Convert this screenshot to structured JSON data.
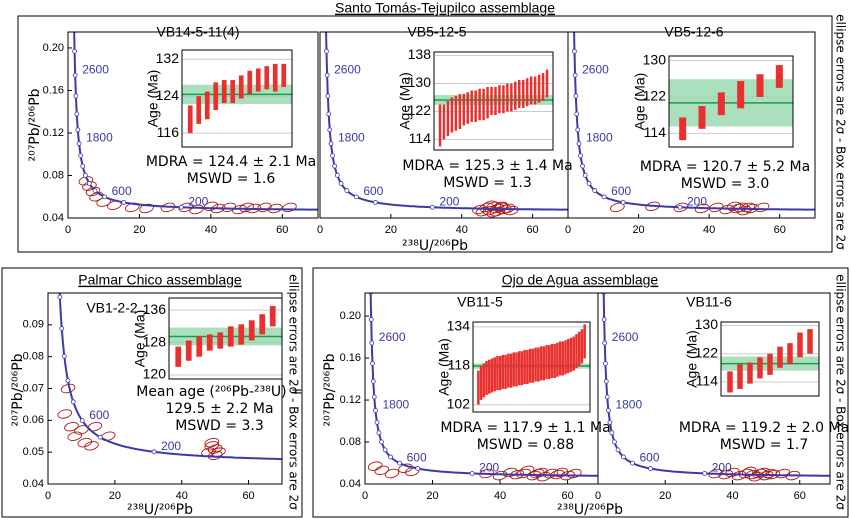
{
  "chart_data": [
    {
      "title": "Santo Tomás-Tejupilco assemblage",
      "side_note": "ellipse errors are 2σ - Box errors are 2σ",
      "x_label": "²³⁸U/²⁰⁶Pb",
      "y_label": "²⁰⁷Pb/²⁰⁶Pb",
      "panels": [
        {
          "type": "concordia",
          "title": "VB14-5-11(4)",
          "xlim": [
            0,
            70
          ],
          "xticks": [
            0,
            20,
            40,
            60
          ],
          "ylim": [
            0.04,
            0.215
          ],
          "yticks": [
            0.04,
            0.08,
            0.12,
            0.16,
            {
              "value": 0.2,
              "label": "0.20"
            }
          ],
          "age_labels": [
            2600,
            1800,
            600,
            200
          ],
          "curve_color": "#3a3aa8",
          "point_color": "#b01818",
          "points": {
            "x": [
              5,
              6,
              7,
              8,
              10,
              13,
              18,
              22,
              28,
              33,
              36,
              40,
              42,
              45,
              48,
              50,
              52,
              55,
              58,
              62
            ],
            "y": [
              0.075,
              0.07,
              0.065,
              0.06,
              0.055,
              0.052,
              0.05,
              0.049,
              0.05,
              0.05,
              0.048,
              0.051,
              0.049,
              0.05,
              0.048,
              0.05,
              0.049,
              0.05,
              0.049,
              0.05
            ]
          },
          "inset": {
            "type": "weighted_mean",
            "y_label": "Age (Ma)",
            "ylim": [
              113,
              134
            ],
            "yticks": [
              116,
              124,
              132
            ],
            "color": "#e8312f",
            "band_color": "#8fd6a8",
            "line_color": "#1f9a4f",
            "values": [
              119,
              121,
              122,
              124,
              125,
              125,
              126,
              127,
              127.5,
              128,
              128,
              128.5
            ],
            "errors": [
              3,
              3,
              3,
              3,
              2.5,
              2.5,
              2.5,
              2.5,
              2.5,
              2.5,
              3,
              2.5
            ],
            "mean": 124.4,
            "mean_error": 2.1
          },
          "result": [
            "MDRA = 124.4 ± 2.1 Ma",
            "MSWD = 1.6"
          ]
        },
        {
          "type": "concordia",
          "title": "VB5-12-5",
          "xlim": [
            0,
            70
          ],
          "xticks": [
            0,
            20,
            40,
            60
          ],
          "ylim": [
            0.04,
            0.215
          ],
          "age_labels": [
            2600,
            1800,
            600,
            200
          ],
          "curve_color": "#3a3aa8",
          "point_color": "#b01818",
          "points": {
            "x": [
              45,
              47,
              48,
              49,
              50,
              50,
              51,
              52,
              53,
              48,
              46,
              54,
              49,
              51
            ],
            "y": [
              0.048,
              0.05,
              0.047,
              0.051,
              0.049,
              0.046,
              0.05,
              0.048,
              0.049,
              0.052,
              0.046,
              0.047,
              0.045,
              0.051
            ]
          },
          "inset": {
            "type": "weighted_mean",
            "y_label": "Age (Ma)",
            "ylim": [
              111,
              139
            ],
            "yticks": [
              114,
              122,
              130,
              138
            ],
            "color": "#e8312f",
            "band_color": "#8fd6a8",
            "line_color": "#1f9a4f",
            "values": [
              118,
              119,
              120,
              121,
              121.5,
              122,
              122.5,
              123,
              123.5,
              123.5,
              124,
              124,
              124.5,
              125,
              125,
              125.5,
              125.5,
              126,
              126,
              126.5,
              127,
              127,
              127.5,
              128,
              128,
              128.5,
              129,
              130
            ],
            "errors": [
              6,
              5,
              5,
              5,
              5,
              5,
              4.5,
              4.5,
              4.5,
              4.5,
              4.5,
              4.5,
              4.5,
              4,
              4,
              4,
              4,
              4,
              4,
              4,
              4,
              4,
              4,
              4,
              4,
              4,
              4,
              4
            ],
            "mean": 125.3,
            "mean_error": 1.4
          },
          "result": [
            "MDRA = 125.3 ± 1.4 Ma",
            "MSWD = 1.3"
          ]
        },
        {
          "type": "concordia",
          "title": "VB5-12-6",
          "xlim": [
            0,
            70
          ],
          "xticks": [
            0,
            20,
            40,
            60
          ],
          "ylim": [
            0.04,
            0.215
          ],
          "age_labels": [
            2600,
            1800,
            600,
            200
          ],
          "curve_color": "#3a3aa8",
          "point_color": "#b01818",
          "points": {
            "x": [
              14,
              24,
              32,
              38,
              42,
              45,
              47,
              48,
              49,
              50,
              51,
              52,
              55
            ],
            "y": [
              0.05,
              0.051,
              0.05,
              0.049,
              0.05,
              0.048,
              0.051,
              0.049,
              0.05,
              0.047,
              0.05,
              0.049,
              0.05
            ]
          },
          "inset": {
            "type": "weighted_mean",
            "y_label": "Age (Ma)",
            "ylim": [
              111,
              131
            ],
            "yticks": [
              114,
              122,
              130
            ],
            "color": "#e8312f",
            "band_color": "#8fd6a8",
            "line_color": "#1f9a4f",
            "values": [
              115,
              117.5,
              120.5,
              122.5,
              124.5,
              126.5
            ],
            "errors": [
              2.5,
              2.5,
              2.5,
              3,
              2.5,
              2.5
            ],
            "mean": 120.7,
            "mean_error": 5.2
          },
          "result": [
            "MDRA = 120.7 ± 5.2 Ma",
            "MSWD = 3.0"
          ]
        }
      ]
    },
    {
      "title": "Palmar Chico assemblage",
      "side_note": "ellipse errors are 2σ - Box errors are 2σ",
      "x_label": "²³⁸U/²⁰⁶Pb",
      "y_label": "²⁰⁷Pb/²⁰⁶Pb",
      "panels": [
        {
          "type": "concordia",
          "title": "VB1-2-2",
          "xlim": [
            0,
            70
          ],
          "xticks": [
            0,
            20,
            40,
            60
          ],
          "ylim": [
            0.04,
            0.1
          ],
          "yticks": [
            0.04,
            0.05,
            0.06,
            0.07,
            0.08,
            0.09
          ],
          "age_labels": [
            600,
            200
          ],
          "curve_color": "#3a3aa8",
          "point_color": "#b01818",
          "points": {
            "x": [
              5,
              6,
              7,
              8,
              10,
              11,
              13,
              14,
              18,
              48,
              49,
              50,
              50,
              51,
              49
            ],
            "y": [
              0.062,
              0.07,
              0.058,
              0.055,
              0.057,
              0.053,
              0.052,
              0.058,
              0.055,
              0.05,
              0.052,
              0.049,
              0.051,
              0.05,
              0.053
            ]
          },
          "inset": {
            "type": "weighted_mean",
            "y_label": "Age (Ma)",
            "ylim": [
              119,
              139
            ],
            "yticks": [
              120,
              128,
              136
            ],
            "color": "#e8312f",
            "band_color": "#8fd6a8",
            "line_color": "#1f9a4f",
            "values": [
              124.5,
              126,
              127,
              128,
              128.5,
              129.5,
              130,
              131,
              132.5,
              134.5
            ],
            "errors": [
              2.5,
              2.5,
              2.5,
              2,
              2,
              2.5,
              2.5,
              2.5,
              2.5,
              2.5
            ],
            "mean": 129.5,
            "mean_error": 2.2
          },
          "result": [
            "Mean age (²⁰⁶Pb-²³⁸U) =",
            "129.5 ± 2.2 Ma",
            "MSWD = 3.3"
          ]
        }
      ]
    },
    {
      "title": "Ojo de Agua assemblage",
      "side_note": "ellipse errors are 2σ - Box errors are 2σ",
      "x_label": "²³⁸U/²⁰⁶Pb",
      "y_label": "²⁰⁷Pb/²⁰⁶Pb",
      "panels": [
        {
          "type": "concordia",
          "title": "VB11-5",
          "xlim": [
            0,
            69
          ],
          "xticks": [
            0,
            20,
            40,
            60
          ],
          "ylim": [
            0.04,
            0.222
          ],
          "yticks": [
            0.04,
            0.08,
            0.12,
            0.16,
            {
              "value": 0.2,
              "label": "0.20"
            }
          ],
          "age_labels": [
            2600,
            1800,
            600,
            200
          ],
          "curve_color": "#3a3aa8",
          "point_color": "#b01818",
          "points": {
            "x": [
              3,
              5,
              8,
              12,
              14,
              36,
              40,
              43,
              45,
              47,
              48,
              50,
              51,
              52,
              53,
              55,
              57,
              58,
              60,
              62
            ],
            "y": [
              0.057,
              0.053,
              0.05,
              0.055,
              0.052,
              0.05,
              0.048,
              0.051,
              0.049,
              0.05,
              0.053,
              0.048,
              0.05,
              0.051,
              0.047,
              0.05,
              0.049,
              0.051,
              0.048,
              0.05
            ]
          },
          "inset": {
            "type": "weighted_mean",
            "y_label": "Age (Ma)",
            "ylim": [
              99,
              136
            ],
            "yticks": [
              102,
              118,
              134
            ],
            "color": "#e8312f",
            "band_color": "#8fd6a8",
            "line_color": "#1f9a4f",
            "values": [
              109,
              111,
              112,
              113,
              113.5,
              114,
              114.5,
              115,
              115,
              115.5,
              115.5,
              116,
              116,
              116.5,
              116.5,
              117,
              117,
              117.5,
              117.5,
              118,
              118,
              118.5,
              118.5,
              119,
              119,
              119.5,
              119.5,
              120,
              120,
              120.5,
              121,
              121,
              121.5,
              122,
              122.5,
              123,
              124,
              125,
              126,
              128
            ],
            "errors": [
              7,
              7,
              7,
              7,
              7,
              7,
              7,
              7,
              7,
              7,
              7,
              7,
              7,
              7,
              7,
              7,
              7,
              7,
              7,
              7,
              7,
              7,
              7,
              7,
              7,
              7,
              7,
              7,
              7,
              7,
              7,
              7,
              7,
              7,
              7,
              7,
              7,
              7,
              7,
              7
            ],
            "mean": 117.9,
            "mean_error": 1.1
          },
          "result": [
            "MDRA = 117.9 ± 1.1 Ma",
            "MSWD = 0.88"
          ]
        },
        {
          "type": "concordia",
          "title": "VB11-6",
          "xlim": [
            0,
            69
          ],
          "xticks": [
            0,
            20,
            40,
            60
          ],
          "ylim": [
            0.04,
            0.222
          ],
          "age_labels": [
            2600,
            1800,
            600,
            200
          ],
          "curve_color": "#3a3aa8",
          "point_color": "#b01818",
          "points": {
            "x": [
              35,
              38,
              40,
              42,
              44,
              45,
              46,
              47,
              48,
              49,
              50,
              51,
              52,
              55,
              58
            ],
            "y": [
              0.05,
              0.049,
              0.051,
              0.048,
              0.05,
              0.052,
              0.049,
              0.047,
              0.05,
              0.051,
              0.048,
              0.05,
              0.049,
              0.05,
              0.048
            ]
          },
          "inset": {
            "type": "weighted_mean",
            "y_label": "Age (Ma)",
            "ylim": [
              110,
              131
            ],
            "yticks": [
              114,
              122,
              130
            ],
            "color": "#e8312f",
            "band_color": "#8fd6a8",
            "line_color": "#1f9a4f",
            "values": [
              114,
              115.5,
              116.5,
              118,
              119,
              121,
              122,
              124.5,
              125.5
            ],
            "errors": [
              3,
              3.5,
              3,
              3,
              3,
              3,
              3,
              3.5,
              3.5
            ],
            "mean": 119.2,
            "mean_error": 2.0
          },
          "result": [
            "MDRA = 119.2 ± 2.0 Ma",
            "MSWD = 1.7"
          ]
        }
      ]
    }
  ]
}
